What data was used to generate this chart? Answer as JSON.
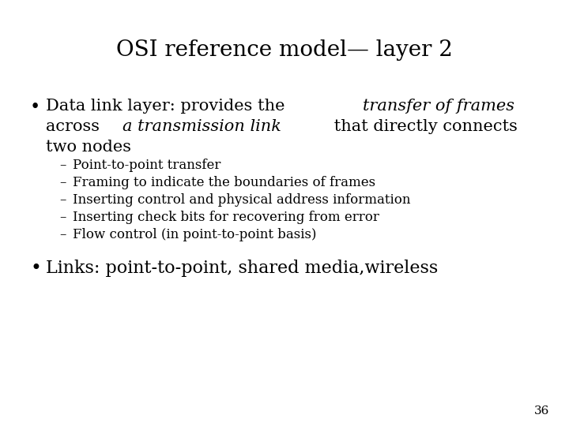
{
  "title": "OSI reference model— layer 2",
  "background_color": "#ffffff",
  "text_color": "#000000",
  "title_fontsize": 20,
  "serif": "DejaVu Serif",
  "bullet1_parts_line1": [
    [
      "Data link layer: provides the ",
      false
    ],
    [
      "transfer of frames",
      true
    ]
  ],
  "bullet1_parts_line2": [
    [
      "across ",
      false
    ],
    [
      "a transmission link",
      true
    ],
    [
      " that directly connects",
      false
    ]
  ],
  "bullet1_line3": "two nodes",
  "sub_bullets": [
    "Point-to-point transfer",
    "Framing to indicate the boundaries of frames",
    "Inserting control and physical address information",
    "Inserting check bits for recovering from error",
    "Flow control (in point-to-point basis)"
  ],
  "bullet2": "Links: point-to-point, shared media,wireless",
  "page_number": "36",
  "bullet_fontsize": 15,
  "sub_bullet_fontsize": 12,
  "bullet2_fontsize": 16
}
